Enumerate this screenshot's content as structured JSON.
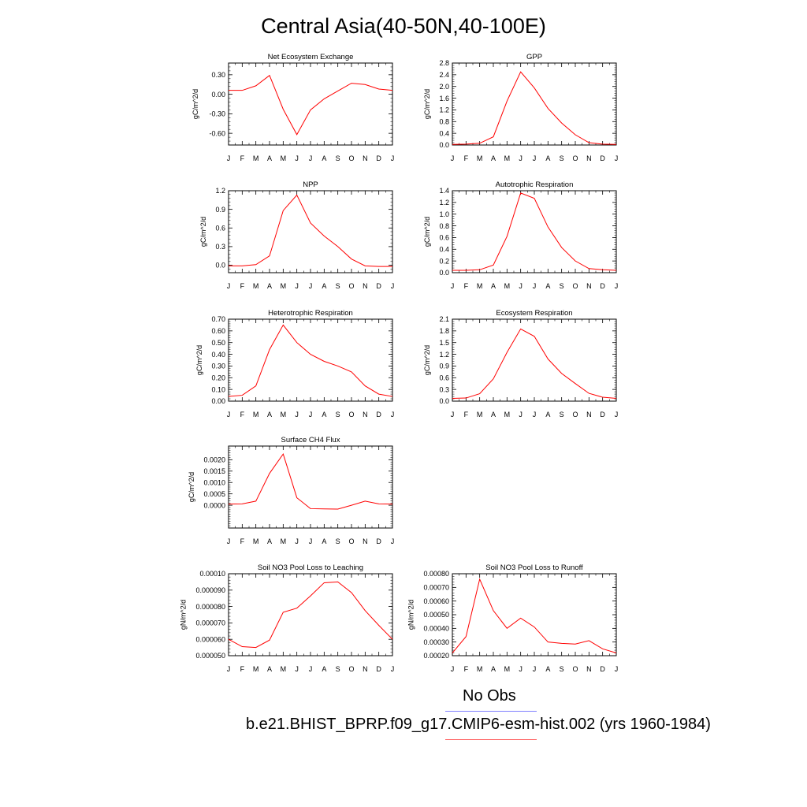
{
  "title": "Central Asia(40-50N,40-100E)",
  "legend": {
    "items": [
      {
        "label": "No Obs",
        "color": "#8080ff"
      },
      {
        "label": "b.e21.BHIST_BPRP.f09_g17.CMIP6-esm-hist.002 (yrs 1960-1984)",
        "color": "#ff6060"
      }
    ]
  },
  "colors": {
    "series": "#ff0000",
    "axis": "#000000"
  },
  "chart_data": [
    {
      "type": "line",
      "title": "Net Ecosystem Exchange",
      "ylabel": "gC/m^2/d",
      "categories": [
        "J",
        "F",
        "M",
        "A",
        "M",
        "J",
        "J",
        "A",
        "S",
        "O",
        "N",
        "D",
        "J"
      ],
      "yticks": [
        "0.30",
        "0.00",
        "-0.30",
        "-0.60"
      ],
      "ytick_values": [
        0.3,
        0.0,
        -0.3,
        -0.6
      ],
      "ylim": [
        -0.78,
        0.48
      ],
      "series": [
        {
          "values": [
            0.06,
            0.06,
            0.13,
            0.29,
            -0.23,
            -0.62,
            -0.24,
            -0.07,
            0.05,
            0.17,
            0.15,
            0.08,
            0.06
          ]
        }
      ]
    },
    {
      "type": "line",
      "title": "GPP",
      "ylabel": "gC/m^2/d",
      "categories": [
        "J",
        "F",
        "M",
        "A",
        "M",
        "J",
        "J",
        "A",
        "S",
        "O",
        "N",
        "D",
        "J"
      ],
      "yticks": [
        "2.8",
        "2.4",
        "2.0",
        "1.6",
        "1.2",
        "0.8",
        "0.4",
        "0.0"
      ],
      "ytick_values": [
        2.8,
        2.4,
        2.0,
        1.6,
        1.2,
        0.8,
        0.4,
        0.0
      ],
      "ylim": [
        0.0,
        2.8
      ],
      "series": [
        {
          "values": [
            0.02,
            0.03,
            0.06,
            0.28,
            1.5,
            2.5,
            1.95,
            1.25,
            0.75,
            0.35,
            0.08,
            0.03,
            0.02
          ]
        }
      ]
    },
    {
      "type": "line",
      "title": "NPP",
      "ylabel": "gC/m^2/d",
      "categories": [
        "J",
        "F",
        "M",
        "A",
        "M",
        "J",
        "J",
        "A",
        "S",
        "O",
        "N",
        "D",
        "J"
      ],
      "yticks": [
        "1.2",
        "0.9",
        "0.6",
        "0.3",
        "0.0"
      ],
      "ytick_values": [
        1.2,
        0.9,
        0.6,
        0.3,
        0.0
      ],
      "ylim": [
        -0.12,
        1.2
      ],
      "series": [
        {
          "values": [
            -0.01,
            -0.01,
            0.01,
            0.15,
            0.88,
            1.13,
            0.68,
            0.47,
            0.3,
            0.1,
            -0.01,
            -0.02,
            -0.02
          ]
        }
      ]
    },
    {
      "type": "line",
      "title": "Autotrophic Respiration",
      "ylabel": "gC/m^2/d",
      "categories": [
        "J",
        "F",
        "M",
        "A",
        "M",
        "J",
        "J",
        "A",
        "S",
        "O",
        "N",
        "D",
        "J"
      ],
      "yticks": [
        "1.4",
        "1.2",
        "1.0",
        "0.8",
        "0.6",
        "0.4",
        "0.2",
        "0.0"
      ],
      "ytick_values": [
        1.4,
        1.2,
        1.0,
        0.8,
        0.6,
        0.4,
        0.2,
        0.0
      ],
      "ylim": [
        0.0,
        1.4
      ],
      "series": [
        {
          "values": [
            0.04,
            0.04,
            0.05,
            0.13,
            0.62,
            1.36,
            1.27,
            0.78,
            0.43,
            0.2,
            0.07,
            0.05,
            0.04
          ]
        }
      ]
    },
    {
      "type": "line",
      "title": "Heterotrophic Respiration",
      "ylabel": "gC/m^2/d",
      "categories": [
        "J",
        "F",
        "M",
        "A",
        "M",
        "J",
        "J",
        "A",
        "S",
        "O",
        "N",
        "D",
        "J"
      ],
      "yticks": [
        "0.70",
        "0.60",
        "0.50",
        "0.40",
        "0.30",
        "0.20",
        "0.10",
        "0.00"
      ],
      "ytick_values": [
        0.7,
        0.6,
        0.5,
        0.4,
        0.3,
        0.2,
        0.1,
        0.0
      ],
      "ylim": [
        0.0,
        0.7
      ],
      "series": [
        {
          "values": [
            0.04,
            0.05,
            0.13,
            0.44,
            0.65,
            0.5,
            0.4,
            0.34,
            0.3,
            0.25,
            0.13,
            0.06,
            0.04
          ]
        }
      ]
    },
    {
      "type": "line",
      "title": "Ecosystem Respiration",
      "ylabel": "gC/m^2/d",
      "categories": [
        "J",
        "F",
        "M",
        "A",
        "M",
        "J",
        "J",
        "A",
        "S",
        "O",
        "N",
        "D",
        "J"
      ],
      "yticks": [
        "2.1",
        "1.8",
        "1.5",
        "1.2",
        "0.9",
        "0.6",
        "0.3",
        "0.0"
      ],
      "ytick_values": [
        2.1,
        1.8,
        1.5,
        1.2,
        0.9,
        0.6,
        0.3,
        0.0
      ],
      "ylim": [
        0.0,
        2.1
      ],
      "series": [
        {
          "values": [
            0.07,
            0.08,
            0.19,
            0.57,
            1.25,
            1.85,
            1.66,
            1.08,
            0.71,
            0.45,
            0.2,
            0.1,
            0.07
          ]
        }
      ]
    },
    {
      "type": "line",
      "title": "Surface CH4 Flux",
      "ylabel": "gC/m^2/d",
      "categories": [
        "J",
        "F",
        "M",
        "A",
        "M",
        "J",
        "J",
        "A",
        "S",
        "O",
        "N",
        "D",
        "J"
      ],
      "yticks": [
        "0.0020",
        "0.0015",
        "0.0010",
        "0.0005",
        "0.0000"
      ],
      "ytick_values": [
        0.002,
        0.0015,
        0.001,
        0.0005,
        0.0
      ],
      "ylim": [
        -0.001,
        0.0026
      ],
      "series": [
        {
          "values": [
            5e-05,
            6e-05,
            0.00018,
            0.0014,
            0.00225,
            0.00033,
            -0.00015,
            -0.00016,
            -0.00017,
            0.0,
            0.00018,
            6e-05,
            5e-05
          ]
        }
      ]
    },
    {
      "type": "line",
      "title": "Soil NO3 Pool Loss to Leaching",
      "ylabel": "gN/m^2/d",
      "categories": [
        "J",
        "F",
        "M",
        "A",
        "M",
        "J",
        "J",
        "A",
        "S",
        "O",
        "N",
        "D",
        "J"
      ],
      "yticks": [
        "0.00010",
        "0.000090",
        "0.000080",
        "0.000070",
        "0.000060",
        "0.000050"
      ],
      "ytick_values": [
        0.0001,
        9e-05,
        8e-05,
        7e-05,
        6e-05,
        5e-05
      ],
      "ylim": [
        5e-05,
        0.0001
      ],
      "series": [
        {
          "values": [
            6e-05,
            5.55e-05,
            5.5e-05,
            5.95e-05,
            7.65e-05,
            7.9e-05,
            8.65e-05,
            9.45e-05,
            9.5e-05,
            8.85e-05,
            7.75e-05,
            6.85e-05,
            6e-05
          ]
        }
      ]
    },
    {
      "type": "line",
      "title": "Soil NO3 Pool Loss to Runoff",
      "ylabel": "gN/m^2/d",
      "categories": [
        "J",
        "F",
        "M",
        "A",
        "M",
        "J",
        "J",
        "A",
        "S",
        "O",
        "N",
        "D",
        "J"
      ],
      "yticks": [
        "0.00080",
        "0.00070",
        "0.00060",
        "0.00050",
        "0.00040",
        "0.00030",
        "0.00020"
      ],
      "ytick_values": [
        0.0008,
        0.0007,
        0.0006,
        0.0005,
        0.0004,
        0.0003,
        0.0002
      ],
      "ylim": [
        0.0002,
        0.0008
      ],
      "series": [
        {
          "values": [
            0.00022,
            0.00034,
            0.00076,
            0.00053,
            0.0004,
            0.000475,
            0.00041,
            0.0003,
            0.00029,
            0.000285,
            0.00031,
            0.00025,
            0.00022
          ]
        }
      ]
    }
  ]
}
